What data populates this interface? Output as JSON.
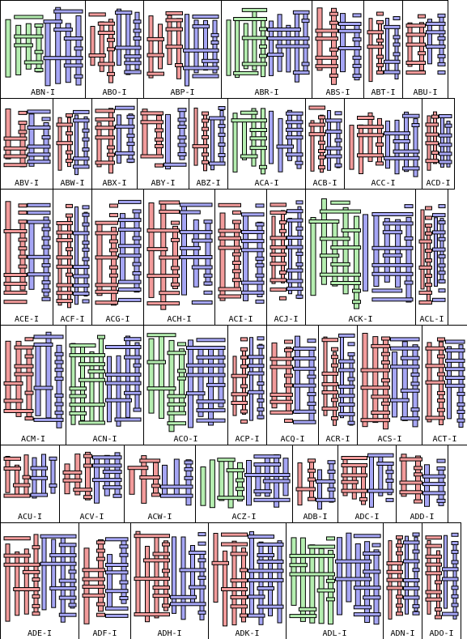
{
  "colors": {
    "red": "#f29b9b",
    "blue": "#a6a6f5",
    "green": "#b5eeb0",
    "border": "#000000",
    "background": "#ffffff"
  },
  "rows": [
    {
      "cells": [
        {
          "label": "ABN-I",
          "colors": [
            "green",
            "blue"
          ]
        },
        {
          "label": "ABO-I",
          "colors": [
            "red",
            "blue"
          ]
        },
        {
          "label": "ABP-I",
          "colors": [
            "red",
            "blue"
          ]
        },
        {
          "label": "ABR-I",
          "colors": [
            "green",
            "blue"
          ]
        },
        {
          "label": "ABS-I",
          "colors": [
            "red",
            "blue"
          ]
        },
        {
          "label": "ABT-I",
          "colors": [
            "red",
            "blue"
          ]
        },
        {
          "label": "ABU-I",
          "colors": [
            "red",
            "blue"
          ]
        }
      ]
    },
    {
      "cells": [
        {
          "label": "ABV-I",
          "colors": [
            "red",
            "blue"
          ]
        },
        {
          "label": "ABW-I",
          "colors": [
            "red",
            "blue"
          ]
        },
        {
          "label": "ABX-I",
          "colors": [
            "red",
            "blue"
          ]
        },
        {
          "label": "ABY-I",
          "colors": [
            "red",
            "blue"
          ]
        },
        {
          "label": "ABZ-I",
          "colors": [
            "red",
            "blue"
          ]
        },
        {
          "label": "ACA-I",
          "colors": [
            "green",
            "blue"
          ]
        },
        {
          "label": "ACB-I",
          "colors": [
            "red",
            "blue"
          ]
        },
        {
          "label": "ACC-I",
          "colors": [
            "red",
            "blue"
          ]
        },
        {
          "label": "ACD-I",
          "colors": [
            "red",
            "blue"
          ]
        }
      ]
    },
    {
      "cells": [
        {
          "label": "ACE-I",
          "colors": [
            "red",
            "blue"
          ]
        },
        {
          "label": "ACF-I",
          "colors": [
            "red",
            "blue"
          ]
        },
        {
          "label": "ACG-I",
          "colors": [
            "red",
            "blue"
          ]
        },
        {
          "label": "ACH-I",
          "colors": [
            "red",
            "blue"
          ]
        },
        {
          "label": "ACI-I",
          "colors": [
            "red",
            "blue"
          ]
        },
        {
          "label": "ACJ-I",
          "colors": [
            "red",
            "blue"
          ]
        },
        {
          "label": "ACK-I",
          "colors": [
            "green",
            "blue"
          ]
        },
        {
          "label": "ACL-I",
          "colors": [
            "red",
            "blue"
          ]
        }
      ]
    },
    {
      "cells": [
        {
          "label": "ACM-I",
          "colors": [
            "red",
            "blue"
          ]
        },
        {
          "label": "ACN-I",
          "colors": [
            "green",
            "blue"
          ]
        },
        {
          "label": "ACO-I",
          "colors": [
            "green",
            "blue"
          ]
        },
        {
          "label": "ACP-I",
          "colors": [
            "red",
            "blue"
          ]
        },
        {
          "label": "ACQ-I",
          "colors": [
            "red",
            "blue"
          ]
        },
        {
          "label": "ACR-I",
          "colors": [
            "red",
            "blue"
          ]
        },
        {
          "label": "ACS-I",
          "colors": [
            "red",
            "blue"
          ]
        },
        {
          "label": "ACT-I",
          "colors": [
            "red",
            "blue"
          ]
        }
      ]
    },
    {
      "cells": [
        {
          "label": "ACU-I",
          "colors": [
            "red",
            "blue"
          ]
        },
        {
          "label": "ACV-I",
          "colors": [
            "red",
            "blue"
          ]
        },
        {
          "label": "ACW-I",
          "colors": [
            "red",
            "blue"
          ]
        },
        {
          "label": "ACZ-I",
          "colors": [
            "green",
            "blue"
          ]
        },
        {
          "label": "ADB-I",
          "colors": [
            "red",
            "blue"
          ]
        },
        {
          "label": "ADC-I",
          "colors": [
            "red",
            "blue"
          ]
        },
        {
          "label": "ADD-I",
          "colors": [
            "red",
            "blue"
          ]
        }
      ]
    },
    {
      "cells": [
        {
          "label": "ADE-I",
          "colors": [
            "red",
            "blue"
          ]
        },
        {
          "label": "ADF-I",
          "colors": [
            "red",
            "blue"
          ]
        },
        {
          "label": "ADH-I",
          "colors": [
            "red",
            "blue"
          ]
        },
        {
          "label": "ADK-I",
          "colors": [
            "red",
            "blue"
          ]
        },
        {
          "label": "ADL-I",
          "colors": [
            "green",
            "blue"
          ]
        },
        {
          "label": "ADN-I",
          "colors": [
            "red",
            "blue"
          ]
        },
        {
          "label": "ADO-I",
          "colors": [
            "red",
            "blue"
          ]
        }
      ]
    }
  ]
}
